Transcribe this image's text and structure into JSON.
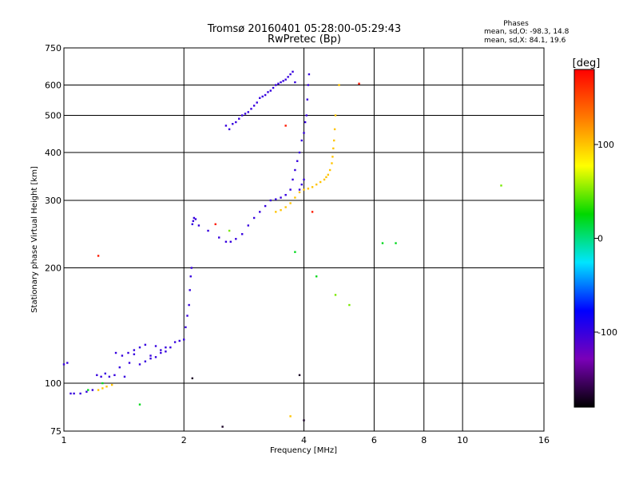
{
  "chart_data": {
    "type": "scatter",
    "title": "Tromsø 20160401 05:28:00-05:29:43",
    "subtitle": "RwPretec (Bp)",
    "xlabel": "Frequency [MHz]",
    "ylabel": "Stationary phase Virtual Height [km]",
    "xscale": "log",
    "yscale": "log",
    "xlim": [
      1,
      16
    ],
    "ylim": [
      75,
      750
    ],
    "xticks": [
      1,
      2,
      4,
      6,
      8,
      10,
      16
    ],
    "yticks": [
      75,
      100,
      200,
      300,
      400,
      500,
      600,
      750
    ],
    "grid": true,
    "stats": {
      "heading": "Phases",
      "line_o": "mean, sd,O: -98.3, 14.8",
      "line_x": "mean, sd,X:  84.1, 19.6"
    },
    "colorbar": {
      "label": "[deg]",
      "min": -180,
      "max": 180,
      "ticks": [
        100,
        0,
        -100
      ],
      "colors": [
        "#000000",
        "#7a00b8",
        "#0000ff",
        "#00e5ff",
        "#00d800",
        "#ffff00",
        "#ff7a00",
        "#ff0000"
      ]
    },
    "series": [
      {
        "phase_deg": -100,
        "x": [
          1.0,
          1.02,
          1.04,
          1.06,
          1.1,
          1.14,
          1.18,
          1.21,
          1.24,
          1.27,
          1.3,
          1.34,
          1.38,
          1.42,
          1.46,
          1.5,
          1.55,
          1.6,
          1.65,
          1.7,
          1.75,
          1.8,
          1.85,
          1.9,
          1.95,
          2.0,
          2.02,
          2.04,
          2.06,
          2.07,
          2.08,
          2.09,
          2.1,
          2.11,
          2.12,
          2.14,
          2.18,
          2.3,
          2.45,
          2.55,
          2.62,
          2.7,
          2.8,
          2.9,
          3.0,
          3.1,
          3.2,
          3.3,
          3.4,
          3.5,
          3.6,
          3.7,
          3.75,
          3.8,
          3.85,
          3.9,
          3.95,
          4.0,
          4.03,
          4.06,
          4.08,
          4.1,
          4.12,
          2.55,
          2.6,
          2.65,
          2.7,
          2.75,
          2.8,
          2.85,
          2.9,
          2.95,
          3.0,
          3.05,
          3.1,
          3.15,
          3.2,
          3.25,
          3.3,
          3.35,
          3.4,
          3.45,
          3.5,
          3.55,
          3.6,
          3.65,
          3.7,
          3.75,
          3.8,
          1.35,
          1.4,
          1.45,
          1.5,
          1.55,
          1.6,
          1.65,
          1.7,
          1.75,
          1.8,
          3.9,
          3.95,
          4.0
        ],
        "y": [
          112,
          113,
          94,
          94,
          94,
          95,
          96,
          105,
          104,
          106,
          104,
          105,
          110,
          104,
          113,
          119,
          112,
          114,
          116,
          117,
          120,
          124,
          124,
          128,
          129,
          130,
          140,
          150,
          160,
          175,
          190,
          200,
          260,
          265,
          270,
          268,
          258,
          250,
          240,
          234,
          234,
          238,
          245,
          258,
          270,
          280,
          290,
          300,
          302,
          305,
          310,
          320,
          340,
          360,
          380,
          400,
          430,
          450,
          480,
          500,
          550,
          600,
          640,
          470,
          460,
          475,
          480,
          490,
          500,
          505,
          510,
          520,
          530,
          540,
          555,
          560,
          565,
          575,
          580,
          590,
          600,
          605,
          610,
          615,
          620,
          630,
          640,
          650,
          610,
          120,
          118,
          120,
          122,
          124,
          126,
          118,
          125,
          122,
          121,
          320,
          330,
          340
        ]
      },
      {
        "phase_deg": 100,
        "x": [
          3.4,
          3.5,
          3.6,
          3.7,
          3.8,
          3.9,
          4.0,
          4.1,
          4.2,
          4.3,
          4.4,
          4.5,
          4.55,
          4.6,
          4.65,
          4.7,
          4.72,
          4.74,
          4.76,
          4.78,
          4.8,
          1.22,
          1.25,
          1.28,
          1.32,
          3.7,
          4.9
        ],
        "y": [
          280,
          283,
          288,
          295,
          305,
          315,
          320,
          322,
          325,
          330,
          335,
          340,
          345,
          350,
          360,
          375,
          390,
          410,
          430,
          460,
          500,
          96,
          97,
          98,
          99,
          82,
          600
        ]
      },
      {
        "phase_deg": 170,
        "x": [
          1.22,
          3.6,
          4.2,
          5.5,
          2.4
        ],
        "y": [
          215,
          470,
          280,
          605,
          260
        ]
      },
      {
        "phase_deg": 20,
        "x": [
          1.15,
          1.25,
          1.55,
          3.8,
          4.3,
          6.3,
          6.8
        ],
        "y": [
          96,
          100,
          88,
          220,
          190,
          232,
          232
        ]
      },
      {
        "phase_deg": 50,
        "x": [
          12.5,
          5.2,
          4.8,
          2.6
        ],
        "y": [
          328,
          160,
          170,
          250
        ]
      },
      {
        "phase_deg": -170,
        "x": [
          3.9,
          4.0,
          2.5,
          2.1
        ],
        "y": [
          105,
          80,
          77,
          103
        ]
      }
    ]
  }
}
